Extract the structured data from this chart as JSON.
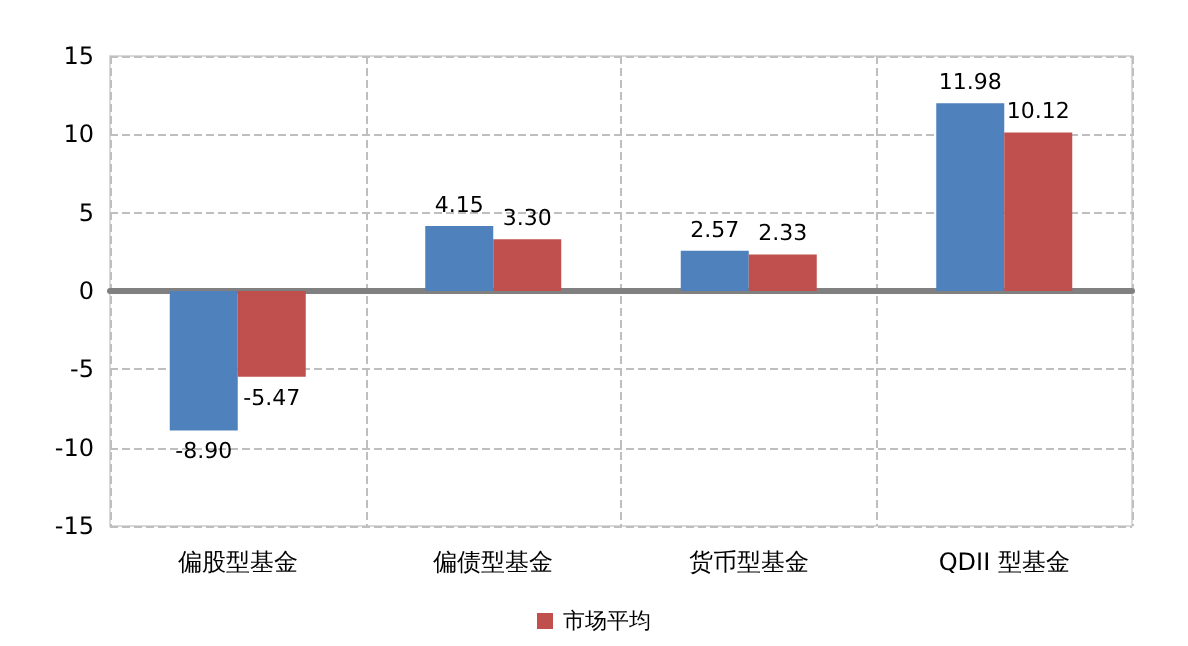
{
  "chart_data": {
    "type": "bar",
    "categories": [
      "偏股型基金",
      "偏债型基金",
      "货币型基金",
      "QDII 型基金"
    ],
    "series": [
      {
        "color": "#4f81bd",
        "values": [
          -8.9,
          4.15,
          2.57,
          11.98
        ],
        "value_labels": [
          "-8.90",
          "4.15",
          "2.57",
          "11.98"
        ]
      },
      {
        "name": "市场平均",
        "color": "#c0504d",
        "values": [
          -5.47,
          3.3,
          2.33,
          10.12
        ],
        "value_labels": [
          "-5.47",
          "3.30",
          "2.33",
          "10.12"
        ]
      }
    ],
    "ylim": [
      -15,
      15
    ],
    "yticks": [
      -15,
      -10,
      -5,
      0,
      5,
      10,
      15
    ],
    "grid": true,
    "legend": "bottom"
  }
}
